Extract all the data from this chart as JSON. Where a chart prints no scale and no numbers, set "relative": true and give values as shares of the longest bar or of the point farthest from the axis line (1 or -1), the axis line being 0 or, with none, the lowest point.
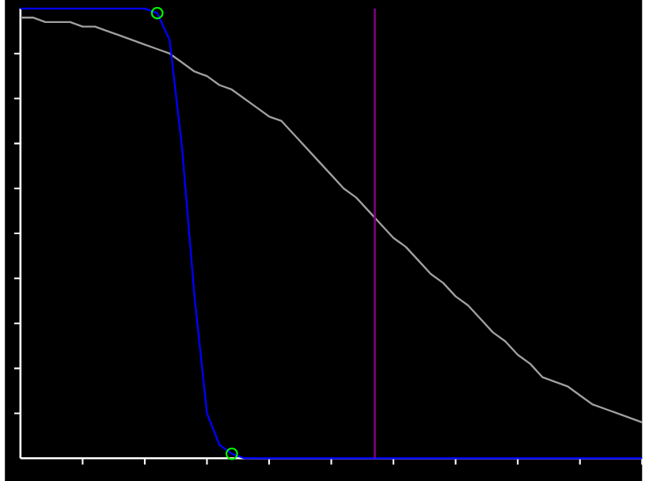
{
  "chart_data": {
    "type": "line",
    "relative": true,
    "categories": [
      null,
      null,
      null,
      null,
      null,
      null,
      null,
      null,
      null,
      null,
      null,
      null,
      null,
      null,
      null,
      null,
      null,
      null,
      null,
      null,
      null,
      null,
      null,
      null,
      null,
      null,
      null,
      null,
      null,
      null,
      null,
      null,
      null,
      null,
      null,
      null,
      null,
      null,
      null,
      null,
      null,
      null,
      null,
      null,
      null,
      null,
      null,
      null,
      null,
      null,
      null
    ],
    "series": [
      {
        "color": "#a0a0a0",
        "values": [
          0.98,
          0.98,
          0.97,
          0.97,
          0.97,
          0.96,
          0.96,
          0.95,
          0.94,
          0.93,
          0.92,
          0.91,
          0.9,
          0.88,
          0.86,
          0.85,
          0.83,
          0.82,
          0.8,
          0.78,
          0.76,
          0.75,
          0.72,
          0.69,
          0.66,
          0.63,
          0.6,
          0.58,
          0.55,
          0.52,
          0.49,
          0.47,
          0.44,
          0.41,
          0.39,
          0.36,
          0.34,
          0.31,
          0.28,
          0.26,
          0.23,
          0.21,
          0.18,
          0.17,
          0.16,
          0.14,
          0.12,
          0.11,
          0.1,
          0.09,
          0.08
        ]
      },
      {
        "color": "#0000ff",
        "values": [
          1,
          1,
          1,
          1,
          1,
          1,
          1,
          1,
          1,
          1,
          1,
          0.99,
          0.93,
          0.69,
          0.36,
          0.1,
          0.03,
          0.01,
          0,
          0,
          0,
          0,
          0,
          0,
          0,
          0,
          0,
          0,
          0,
          0,
          0,
          0,
          0,
          0,
          0,
          0,
          0,
          0,
          0,
          0,
          0,
          0,
          0,
          0,
          0,
          0,
          0,
          0,
          0,
          0,
          0
        ]
      }
    ]
  }
}
